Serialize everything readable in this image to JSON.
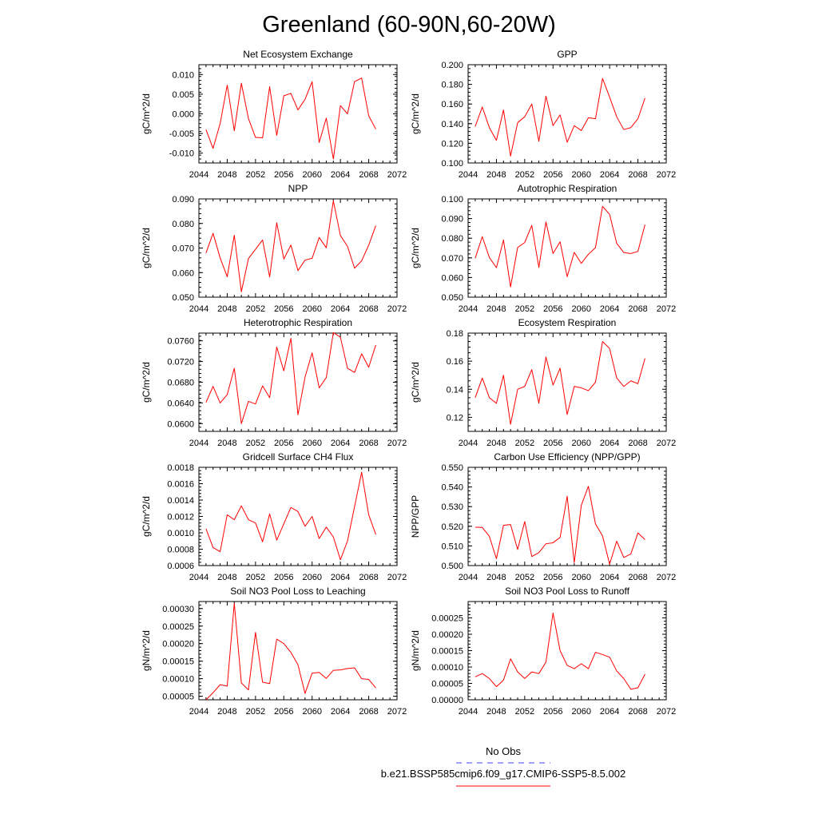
{
  "title": "Greenland (60-90N,60-20W)",
  "legend": {
    "items": [
      {
        "label": "No Obs",
        "color": "#4040ff",
        "dash": true
      },
      {
        "label": "b.e21.BSSP585cmip6.f09_g17.CMIP6-SSP5-8.5.002",
        "color": "#ff0000",
        "dash": false
      }
    ]
  },
  "chart_data": [
    {
      "type": "line",
      "title": "Net Ecosystem Exchange",
      "xlabel": "",
      "ylabel": "gC/m^2/d",
      "xlim": [
        2044,
        2072
      ],
      "xticks": [
        2044,
        2048,
        2052,
        2056,
        2060,
        2064,
        2068,
        2072
      ],
      "ylim": [
        -0.0125,
        0.0125
      ],
      "yticks": [
        -0.01,
        -0.005,
        0.0,
        0.005,
        0.01
      ],
      "ytick_labels": [
        "-0.010",
        "-0.005",
        "0.000",
        "0.005",
        "0.010"
      ],
      "x": [
        2045,
        2046,
        2047,
        2048,
        2049,
        2050,
        2051,
        2052,
        2053,
        2054,
        2055,
        2056,
        2057,
        2058,
        2059,
        2060,
        2061,
        2062,
        2063,
        2064,
        2065,
        2066,
        2067,
        2068,
        2069
      ],
      "series": [
        {
          "values": [
            -0.004,
            -0.0088,
            -0.0025,
            0.0073,
            -0.0043,
            0.0078,
            -0.0012,
            -0.006,
            -0.0061,
            0.0069,
            -0.0055,
            0.0046,
            0.0052,
            0.001,
            0.0037,
            0.0082,
            -0.0073,
            -0.0011,
            -0.0115,
            0.0021,
            0.0,
            0.0082,
            0.0091,
            -0.0005,
            -0.0039
          ],
          "color": "#ff0000"
        }
      ]
    },
    {
      "type": "line",
      "title": "GPP",
      "xlabel": "",
      "ylabel": "gC/m^2/d",
      "xlim": [
        2044,
        2072
      ],
      "xticks": [
        2044,
        2048,
        2052,
        2056,
        2060,
        2064,
        2068,
        2072
      ],
      "ylim": [
        0.1,
        0.2
      ],
      "yticks": [
        0.1,
        0.12,
        0.14,
        0.16,
        0.18,
        0.2
      ],
      "ytick_labels": [
        "0.100",
        "0.120",
        "0.140",
        "0.160",
        "0.180",
        "0.200"
      ],
      "x": [
        2045,
        2046,
        2047,
        2048,
        2049,
        2050,
        2051,
        2052,
        2053,
        2054,
        2055,
        2056,
        2057,
        2058,
        2059,
        2060,
        2061,
        2062,
        2063,
        2064,
        2065,
        2066,
        2067,
        2068,
        2069
      ],
      "series": [
        {
          "values": [
            0.137,
            0.157,
            0.136,
            0.123,
            0.154,
            0.107,
            0.141,
            0.147,
            0.16,
            0.122,
            0.168,
            0.138,
            0.149,
            0.121,
            0.138,
            0.133,
            0.146,
            0.145,
            0.186,
            0.167,
            0.147,
            0.134,
            0.136,
            0.145,
            0.166
          ],
          "color": "#ff0000"
        }
      ]
    },
    {
      "type": "line",
      "title": "NPP",
      "xlabel": "",
      "ylabel": "gC/m^2/d",
      "xlim": [
        2044,
        2072
      ],
      "xticks": [
        2044,
        2048,
        2052,
        2056,
        2060,
        2064,
        2068,
        2072
      ],
      "ylim": [
        0.05,
        0.09
      ],
      "yticks": [
        0.05,
        0.06,
        0.07,
        0.08,
        0.09
      ],
      "ytick_labels": [
        "0.050",
        "0.060",
        "0.070",
        "0.080",
        "0.090"
      ],
      "x": [
        2045,
        2046,
        2047,
        2048,
        2049,
        2050,
        2051,
        2052,
        2053,
        2054,
        2055,
        2056,
        2057,
        2058,
        2059,
        2060,
        2061,
        2062,
        2063,
        2064,
        2065,
        2066,
        2067,
        2068,
        2069
      ],
      "series": [
        {
          "values": [
            0.068,
            0.076,
            0.066,
            0.0583,
            0.0752,
            0.0522,
            0.0657,
            0.0695,
            0.0733,
            0.0582,
            0.0803,
            0.0655,
            0.0712,
            0.0608,
            0.0651,
            0.0658,
            0.0743,
            0.0701,
            0.0892,
            0.0751,
            0.0707,
            0.0618,
            0.0648,
            0.0712,
            0.0791
          ],
          "color": "#ff0000"
        }
      ]
    },
    {
      "type": "line",
      "title": "Autotrophic Respiration",
      "xlabel": "",
      "ylabel": "gC/m^2/d",
      "xlim": [
        2044,
        2072
      ],
      "xticks": [
        2044,
        2048,
        2052,
        2056,
        2060,
        2064,
        2068,
        2072
      ],
      "ylim": [
        0.05,
        0.1
      ],
      "yticks": [
        0.05,
        0.06,
        0.07,
        0.08,
        0.09,
        0.1
      ],
      "ytick_labels": [
        "0.050",
        "0.060",
        "0.070",
        "0.080",
        "0.090",
        "0.100"
      ],
      "x": [
        2045,
        2046,
        2047,
        2048,
        2049,
        2050,
        2051,
        2052,
        2053,
        2054,
        2055,
        2056,
        2057,
        2058,
        2059,
        2060,
        2061,
        2062,
        2063,
        2064,
        2065,
        2066,
        2067,
        2068,
        2069
      ],
      "series": [
        {
          "values": [
            0.0698,
            0.0808,
            0.0702,
            0.065,
            0.0791,
            0.0552,
            0.0753,
            0.0778,
            0.0865,
            0.0651,
            0.0883,
            0.0722,
            0.0782,
            0.0604,
            0.0728,
            0.0672,
            0.0718,
            0.0752,
            0.0962,
            0.0921,
            0.0774,
            0.0727,
            0.0722,
            0.0733,
            0.0869
          ],
          "color": "#ff0000"
        }
      ]
    },
    {
      "type": "line",
      "title": "Heterotrophic Respiration",
      "xlabel": "",
      "ylabel": "gC/m^2/d",
      "xlim": [
        2044,
        2072
      ],
      "xticks": [
        2044,
        2048,
        2052,
        2056,
        2060,
        2064,
        2068,
        2072
      ],
      "ylim": [
        0.0585,
        0.0775
      ],
      "yticks": [
        0.06,
        0.064,
        0.068,
        0.072,
        0.076
      ],
      "ytick_labels": [
        "0.0600",
        "0.0640",
        "0.0680",
        "0.0720",
        "0.0760"
      ],
      "x": [
        2045,
        2046,
        2047,
        2048,
        2049,
        2050,
        2051,
        2052,
        2053,
        2054,
        2055,
        2056,
        2057,
        2058,
        2059,
        2060,
        2061,
        2062,
        2063,
        2064,
        2065,
        2066,
        2067,
        2068,
        2069
      ],
      "series": [
        {
          "values": [
            0.0641,
            0.0672,
            0.064,
            0.0656,
            0.0707,
            0.06,
            0.0643,
            0.0638,
            0.0673,
            0.065,
            0.0748,
            0.0702,
            0.0765,
            0.0617,
            0.069,
            0.0737,
            0.0669,
            0.0689,
            0.0776,
            0.0767,
            0.0707,
            0.0699,
            0.0735,
            0.0709,
            0.0752
          ],
          "color": "#ff0000"
        }
      ]
    },
    {
      "type": "line",
      "title": "Ecosystem Respiration",
      "xlabel": "",
      "ylabel": "gC/m^2/d",
      "xlim": [
        2044,
        2072
      ],
      "xticks": [
        2044,
        2048,
        2052,
        2056,
        2060,
        2064,
        2068,
        2072
      ],
      "ylim": [
        0.11,
        0.18
      ],
      "yticks": [
        0.12,
        0.14,
        0.16,
        0.18
      ],
      "ytick_labels": [
        "0.12",
        "0.14",
        "0.16",
        "0.18"
      ],
      "x": [
        2045,
        2046,
        2047,
        2048,
        2049,
        2050,
        2051,
        2052,
        2053,
        2054,
        2055,
        2056,
        2057,
        2058,
        2059,
        2060,
        2061,
        2062,
        2063,
        2064,
        2065,
        2066,
        2067,
        2068,
        2069
      ],
      "series": [
        {
          "values": [
            0.134,
            0.148,
            0.134,
            0.13,
            0.15,
            0.115,
            0.14,
            0.142,
            0.154,
            0.13,
            0.163,
            0.143,
            0.155,
            0.122,
            0.142,
            0.141,
            0.139,
            0.145,
            0.174,
            0.169,
            0.148,
            0.142,
            0.146,
            0.144,
            0.162
          ],
          "color": "#ff0000"
        }
      ]
    },
    {
      "type": "line",
      "title": "Gridcell Surface CH4 Flux",
      "xlabel": "",
      "ylabel": "gC/m^2/d",
      "xlim": [
        2044,
        2072
      ],
      "xticks": [
        2044,
        2048,
        2052,
        2056,
        2060,
        2064,
        2068,
        2072
      ],
      "ylim": [
        0.0006,
        0.0018
      ],
      "yticks": [
        0.0006,
        0.0008,
        0.001,
        0.0012,
        0.0014,
        0.0016,
        0.0018
      ],
      "ytick_labels": [
        "0.0006",
        "0.0008",
        "0.0010",
        "0.0012",
        "0.0014",
        "0.0016",
        "0.0018"
      ],
      "x": [
        2045,
        2046,
        2047,
        2048,
        2049,
        2050,
        2051,
        2052,
        2053,
        2054,
        2055,
        2056,
        2057,
        2058,
        2059,
        2060,
        2061,
        2062,
        2063,
        2064,
        2065,
        2066,
        2067,
        2068,
        2069
      ],
      "series": [
        {
          "values": [
            0.00105,
            0.00082,
            0.00077,
            0.00122,
            0.00116,
            0.00133,
            0.00116,
            0.00112,
            0.00089,
            0.00123,
            0.00091,
            0.00111,
            0.00131,
            0.00126,
            0.00108,
            0.0012,
            0.00093,
            0.00107,
            0.00095,
            0.00067,
            0.0009,
            0.00132,
            0.00174,
            0.00122,
            0.00098
          ],
          "color": "#ff0000"
        }
      ]
    },
    {
      "type": "line",
      "title": "Carbon Use Efficiency (NPP/GPP)",
      "xlabel": "",
      "ylabel": "NPP/GPP",
      "xlim": [
        2044,
        2072
      ],
      "xticks": [
        2044,
        2048,
        2052,
        2056,
        2060,
        2064,
        2068,
        2072
      ],
      "ylim": [
        0.5,
        0.55
      ],
      "yticks": [
        0.5,
        0.51,
        0.52,
        0.53,
        0.54,
        0.55
      ],
      "ytick_labels": [
        "0.500",
        "0.510",
        "0.520",
        "0.530",
        "0.540",
        "0.550"
      ],
      "x": [
        2045,
        2046,
        2047,
        2048,
        2049,
        2050,
        2051,
        2052,
        2053,
        2054,
        2055,
        2056,
        2057,
        2058,
        2059,
        2060,
        2061,
        2062,
        2063,
        2064,
        2065,
        2066,
        2067,
        2068,
        2069
      ],
      "series": [
        {
          "values": [
            0.5195,
            0.5194,
            0.5149,
            0.5035,
            0.5205,
            0.5209,
            0.5082,
            0.5224,
            0.5046,
            0.5066,
            0.5111,
            0.5116,
            0.5143,
            0.5353,
            0.5015,
            0.5307,
            0.5403,
            0.5212,
            0.5151,
            0.5007,
            0.5124,
            0.5041,
            0.5059,
            0.5166,
            0.5132
          ],
          "color": "#ff0000"
        }
      ]
    },
    {
      "type": "line",
      "title": "Soil NO3 Pool Loss to Leaching",
      "xlabel": "",
      "ylabel": "gN/m^2/d",
      "xlim": [
        2044,
        2072
      ],
      "xticks": [
        2044,
        2048,
        2052,
        2056,
        2060,
        2064,
        2068,
        2072
      ],
      "ylim": [
        4e-05,
        0.00032
      ],
      "yticks": [
        5e-05,
        0.0001,
        0.00015,
        0.0002,
        0.00025,
        0.0003
      ],
      "ytick_labels": [
        "0.00005",
        "0.00010",
        "0.00015",
        "0.00020",
        "0.00025",
        "0.00030"
      ],
      "x": [
        2045,
        2046,
        2047,
        2048,
        2049,
        2050,
        2051,
        2052,
        2053,
        2054,
        2055,
        2056,
        2057,
        2058,
        2059,
        2060,
        2061,
        2062,
        2063,
        2064,
        2065,
        2066,
        2067,
        2068,
        2069
      ],
      "series": [
        {
          "values": [
            4e-05,
            6e-05,
            8.3e-05,
            7.9e-05,
            0.000315,
            8.8e-05,
            6.8e-05,
            0.000232,
            9e-05,
            8.6e-05,
            0.000213,
            0.0002,
            0.000175,
            0.00014,
            5.8e-05,
            0.000116,
            0.000118,
            0.000101,
            0.000124,
            0.000125,
            0.000129,
            0.000131,
            0.0001,
            9.8e-05,
            7.4e-05
          ],
          "color": "#ff0000"
        }
      ]
    },
    {
      "type": "line",
      "title": "Soil NO3 Pool Loss to Runoff",
      "xlabel": "",
      "ylabel": "gN/m^2/d",
      "xlim": [
        2044,
        2072
      ],
      "xticks": [
        2044,
        2048,
        2052,
        2056,
        2060,
        2064,
        2068,
        2072
      ],
      "ylim": [
        0.0,
        0.0003
      ],
      "yticks": [
        0.0,
        5e-05,
        0.0001,
        0.00015,
        0.0002,
        0.00025
      ],
      "ytick_labels": [
        "0.00000",
        "0.00005",
        "0.00010",
        "0.00015",
        "0.00020",
        "0.00025"
      ],
      "x": [
        2045,
        2046,
        2047,
        2048,
        2049,
        2050,
        2051,
        2052,
        2053,
        2054,
        2055,
        2056,
        2057,
        2058,
        2059,
        2060,
        2061,
        2062,
        2063,
        2064,
        2065,
        2066,
        2067,
        2068,
        2069
      ],
      "series": [
        {
          "values": [
            7e-05,
            8e-05,
            6.5e-05,
            4e-05,
            6e-05,
            0.000125,
            8.5e-05,
            6.5e-05,
            8.5e-05,
            8e-05,
            0.000115,
            0.000265,
            0.00015,
            0.000105,
            9.5e-05,
            0.00011,
            9.5e-05,
            0.000145,
            0.000138,
            0.00013,
            8.8e-05,
            6.5e-05,
            3.2e-05,
            3.7e-05,
            7.8e-05
          ],
          "color": "#ff0000"
        }
      ]
    }
  ]
}
